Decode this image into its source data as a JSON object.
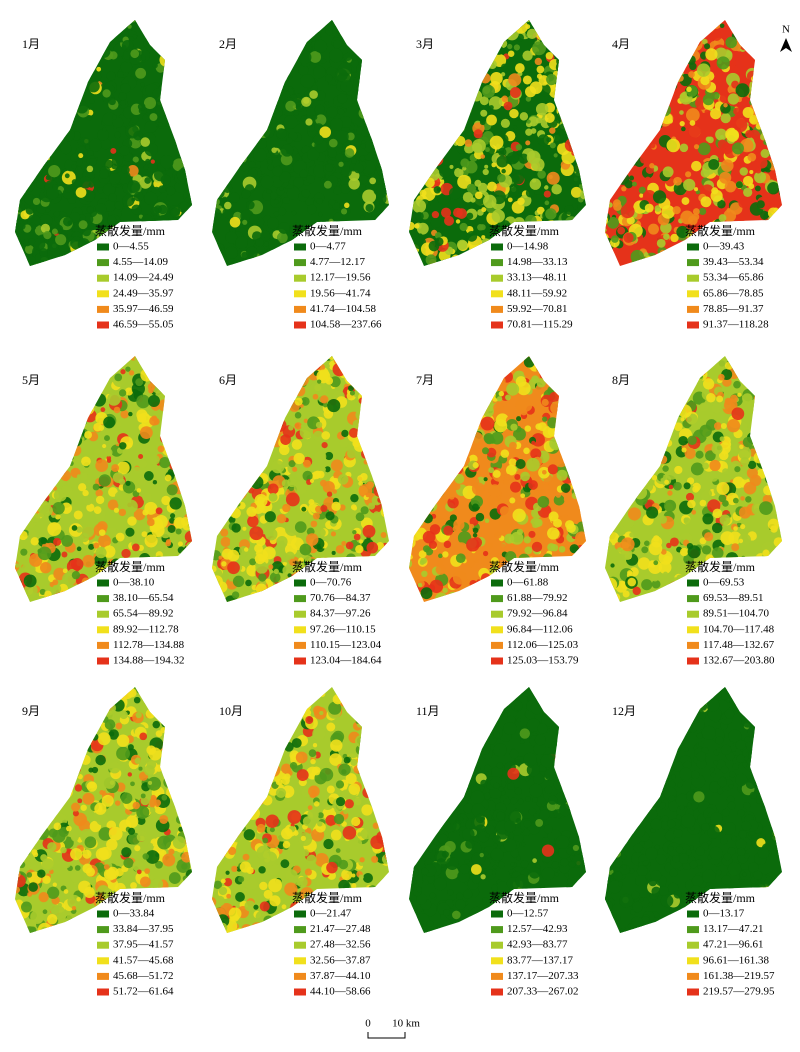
{
  "panels": [
    {
      "month": "1月",
      "legend_title": "蒸散发量/mm",
      "classes": [
        "0—4.55",
        "4.55—14.09",
        "14.09—24.49",
        "24.49—35.97",
        "35.97—46.59",
        "46.59—55.05"
      ]
    },
    {
      "month": "2月",
      "legend_title": "蒸散发量/mm",
      "classes": [
        "0—4.77",
        "4.77—12.17",
        "12.17—19.56",
        "19.56—41.74",
        "41.74—104.58",
        "104.58—237.66"
      ]
    },
    {
      "month": "3月",
      "legend_title": "蒸散发量/mm",
      "classes": [
        "0—14.98",
        "14.98—33.13",
        "33.13—48.11",
        "48.11—59.92",
        "59.92—70.81",
        "70.81—115.29"
      ]
    },
    {
      "month": "4月",
      "legend_title": "蒸散发量/mm",
      "classes": [
        "0—39.43",
        "39.43—53.34",
        "53.34—65.86",
        "65.86—78.85",
        "78.85—91.37",
        "91.37—118.28"
      ]
    },
    {
      "month": "5月",
      "legend_title": "蒸散发量/mm",
      "classes": [
        "0—38.10",
        "38.10—65.54",
        "65.54—89.92",
        "89.92—112.78",
        "112.78—134.88",
        "134.88—194.32"
      ]
    },
    {
      "month": "6月",
      "legend_title": "蒸散发量/mm",
      "classes": [
        "0—70.76",
        "70.76—84.37",
        "84.37—97.26",
        "97.26—110.15",
        "110.15—123.04",
        "123.04—184.64"
      ]
    },
    {
      "month": "7月",
      "legend_title": "蒸散发量/mm",
      "classes": [
        "0—61.88",
        "61.88—79.92",
        "79.92—96.84",
        "96.84—112.06",
        "112.06—125.03",
        "125.03—153.79"
      ]
    },
    {
      "month": "8月",
      "legend_title": "蒸散发量/mm",
      "classes": [
        "0—69.53",
        "69.53—89.51",
        "89.51—104.70",
        "104.70—117.48",
        "117.48—132.67",
        "132.67—203.80"
      ]
    },
    {
      "month": "9月",
      "legend_title": "蒸散发量/mm",
      "classes": [
        "0—33.84",
        "33.84—37.95",
        "37.95—41.57",
        "41.57—45.68",
        "45.68—51.72",
        "51.72—61.64"
      ]
    },
    {
      "month": "10月",
      "legend_title": "蒸散发量/mm",
      "classes": [
        "0—21.47",
        "21.47—27.48",
        "27.48—32.56",
        "32.56—37.87",
        "37.87—44.10",
        "44.10—58.66"
      ]
    },
    {
      "month": "11月",
      "legend_title": "蒸散发量/mm",
      "classes": [
        "0—12.57",
        "12.57—42.93",
        "42.93—83.77",
        "83.77—137.17",
        "137.17—207.33",
        "207.33—267.02"
      ]
    },
    {
      "month": "12月",
      "legend_title": "蒸散发量/mm",
      "classes": [
        "0—13.17",
        "13.17—47.21",
        "47.21—96.61",
        "96.61—161.38",
        "161.38—219.57",
        "219.57—279.95"
      ]
    }
  ],
  "north": "N",
  "scale_bar": {
    "start": "0",
    "end": "10 km"
  }
}
